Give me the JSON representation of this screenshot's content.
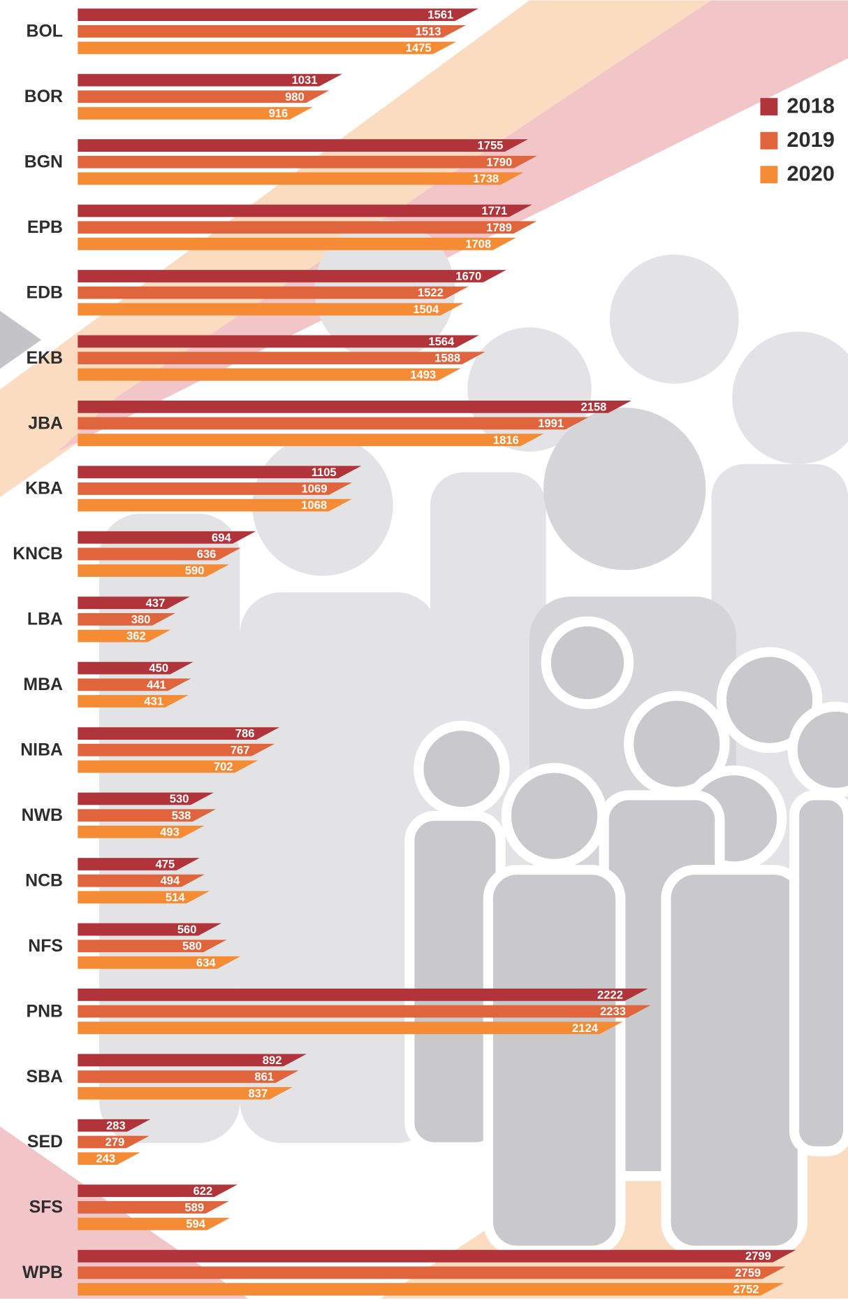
{
  "chart_data": {
    "type": "hbar",
    "categories": [
      "BOL",
      "BOR",
      "BGN",
      "EPB",
      "EDB",
      "EKB",
      "JBA",
      "KBA",
      "KNCB",
      "LBA",
      "MBA",
      "NIBA",
      "NWB",
      "NCB",
      "NFS",
      "PNB",
      "SBA",
      "SED",
      "SFS",
      "WPB"
    ],
    "series": [
      {
        "name": "2018",
        "color": "#b0343a",
        "values": [
          1561,
          1031,
          1755,
          1771,
          1670,
          1564,
          2158,
          1105,
          694,
          437,
          450,
          786,
          530,
          475,
          560,
          2222,
          892,
          283,
          622,
          2799
        ]
      },
      {
        "name": "2019",
        "color": "#e0643c",
        "values": [
          1513,
          980,
          1790,
          1789,
          1522,
          1588,
          1991,
          1069,
          636,
          380,
          441,
          767,
          538,
          494,
          580,
          2233,
          861,
          279,
          589,
          2759
        ]
      },
      {
        "name": "2020",
        "color": "#f58b35",
        "values": [
          1475,
          916,
          1738,
          1708,
          1504,
          1493,
          1816,
          1068,
          590,
          362,
          431,
          702,
          493,
          514,
          634,
          2124,
          837,
          243,
          594,
          2752
        ]
      }
    ],
    "legend": "top-right"
  }
}
